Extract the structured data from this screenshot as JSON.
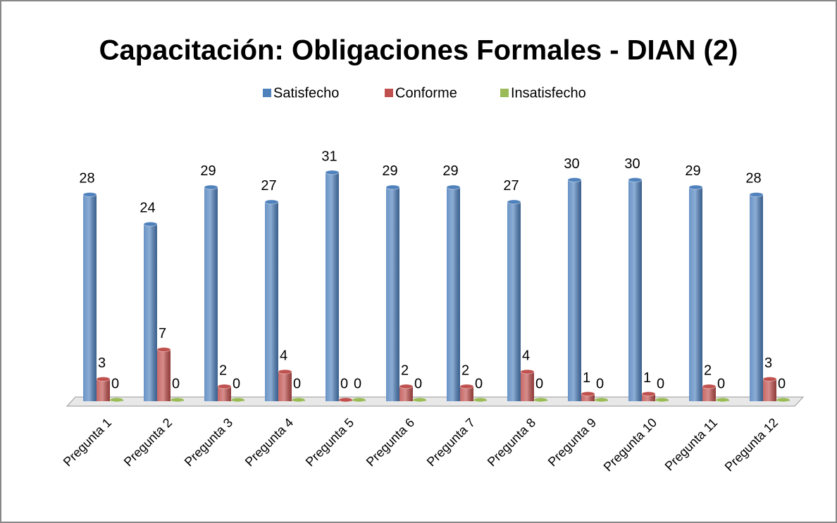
{
  "chart_data": {
    "type": "bar3d",
    "title": "Capacitación: Obligaciones Formales - DIAN (2)",
    "categories": [
      "Pregunta 1",
      "Pregunta 2",
      "Pregunta 3",
      "Pregunta 4",
      "Pregunta 5",
      "Pregunta 6",
      "Pregunta 7",
      "Pregunta 8",
      "Pregunta 9",
      "Pregunta 10",
      "Pregunta 11",
      "Pregunta 12"
    ],
    "series": [
      {
        "name": "Satisfecho",
        "color": "#4f81bd",
        "values": [
          28,
          24,
          29,
          27,
          31,
          29,
          29,
          27,
          30,
          30,
          29,
          28
        ]
      },
      {
        "name": "Conforme",
        "color": "#c0504d",
        "values": [
          3,
          7,
          2,
          4,
          0,
          2,
          2,
          4,
          1,
          1,
          2,
          3
        ]
      },
      {
        "name": "Insatisfecho",
        "color": "#9bbb59",
        "values": [
          0,
          0,
          0,
          0,
          0,
          0,
          0,
          0,
          0,
          0,
          0,
          0
        ]
      }
    ],
    "legend": "top"
  }
}
